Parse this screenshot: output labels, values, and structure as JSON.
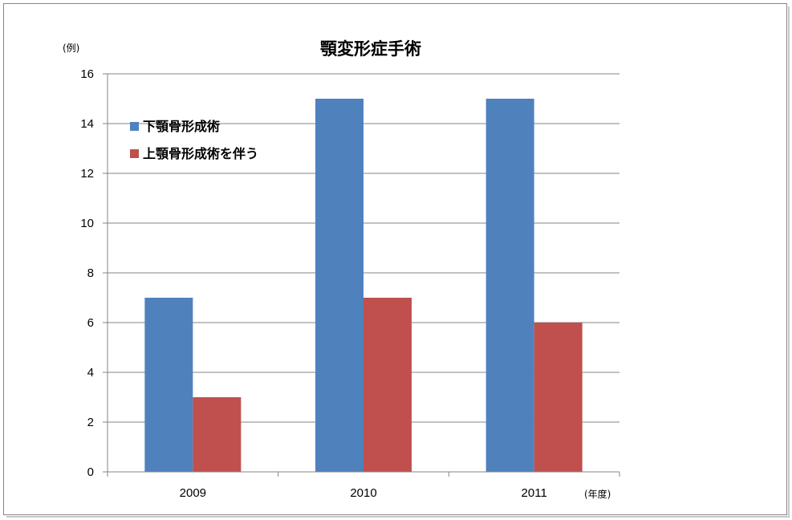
{
  "chart_data": {
    "type": "bar",
    "title": "顎変形症手術",
    "ylabel": "(例)",
    "xlabel": "(年度)",
    "categories": [
      "2009",
      "2010",
      "2011"
    ],
    "series": [
      {
        "name": "下顎骨形成術",
        "values": [
          7,
          15,
          15
        ],
        "color": "#4f81bd"
      },
      {
        "name": "上顎骨形成術を伴う",
        "values": [
          3,
          7,
          6
        ],
        "color": "#c0504d"
      }
    ],
    "ylim": [
      0,
      16
    ],
    "yticks": [
      0,
      2,
      4,
      6,
      8,
      10,
      12,
      14,
      16
    ],
    "grid": true,
    "legend_position": "top-left"
  }
}
